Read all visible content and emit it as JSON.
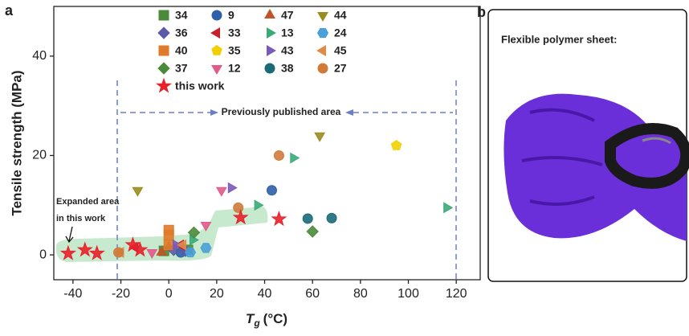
{
  "chart_data": {
    "type": "scatter",
    "ylabel": "Tensile strength (MPa)",
    "xlabel": {
      "symbol": "T",
      "subscript": "g",
      "unit": "(°C)"
    },
    "xlim": [
      -48,
      130
    ],
    "ylim": [
      -5,
      50
    ],
    "xticks": [
      -40,
      -20,
      0,
      20,
      40,
      60,
      80,
      100,
      120
    ],
    "yticks": [
      0,
      20,
      40
    ],
    "annotations": [
      "Previously published area",
      "Expanded area",
      "in this work"
    ],
    "series": [
      {
        "name": "34",
        "marker": "square",
        "color": "#4a8b3a",
        "x": [
          8,
          -2
        ],
        "values": [
          1,
          0.8
        ]
      },
      {
        "name": "9",
        "marker": "circle",
        "color": "#2f5fa8",
        "x": [
          43,
          5
        ],
        "values": [
          13,
          0.5
        ]
      },
      {
        "name": "47",
        "marker": "triangle-up",
        "color": "#c0532a",
        "x": [
          0,
          -3
        ],
        "values": [
          1.5,
          0.5
        ]
      },
      {
        "name": "44",
        "marker": "triangle-down",
        "color": "#9a8c1f",
        "x": [
          -13,
          63
        ],
        "values": [
          13,
          24
        ]
      },
      {
        "name": "36",
        "marker": "diamond",
        "color": "#5a5aa8",
        "x": [
          2,
          7
        ],
        "values": [
          1,
          0.8
        ]
      },
      {
        "name": "33",
        "marker": "triangle-left",
        "color": "#c8202a",
        "x": [
          5,
          -14
        ],
        "values": [
          2,
          1.5
        ]
      },
      {
        "name": "13",
        "marker": "triangle-right",
        "color": "#3aaa78",
        "x": [
          116,
          52,
          37,
          10
        ],
        "values": [
          9.5,
          19.5,
          10,
          3
        ]
      },
      {
        "name": "24",
        "marker": "hexagon",
        "color": "#4aa0d8",
        "x": [
          15.5,
          9
        ],
        "values": [
          1.4,
          0.5
        ]
      },
      {
        "name": "40",
        "marker": "square",
        "color": "#e07a2a",
        "x": [
          0,
          0,
          0
        ],
        "values": [
          5,
          4,
          2
        ]
      },
      {
        "name": "35",
        "marker": "pentagon",
        "color": "#f2d000",
        "x": [
          95
        ],
        "values": [
          22
        ]
      },
      {
        "name": "43",
        "marker": "triangle-right",
        "color": "#7a5ab8",
        "x": [
          26,
          3
        ],
        "values": [
          13.5,
          2
        ]
      },
      {
        "name": "45",
        "marker": "triangle-left",
        "color": "#e08a4a",
        "x": [
          6,
          -20
        ],
        "values": [
          2,
          0.5
        ]
      },
      {
        "name": "37",
        "marker": "diamond",
        "color": "#4a8b3a",
        "x": [
          10.5,
          60
        ],
        "values": [
          4.5,
          4.7
        ]
      },
      {
        "name": "12",
        "marker": "triangle-down",
        "color": "#e05a8a",
        "x": [
          22,
          15.5,
          -7
        ],
        "values": [
          13,
          6,
          0.5
        ]
      },
      {
        "name": "38",
        "marker": "circle",
        "color": "#1a6a7a",
        "x": [
          58,
          68
        ],
        "values": [
          7.3,
          7.4
        ]
      },
      {
        "name": "27",
        "marker": "circle",
        "color": "#d07a3a",
        "x": [
          46,
          29,
          -21
        ],
        "values": [
          20,
          9.5,
          0.5
        ]
      },
      {
        "name": "this work",
        "marker": "star",
        "color": "#e8202a",
        "x": [
          -42,
          -35,
          -30,
          -15,
          -12,
          30,
          46
        ],
        "values": [
          0.3,
          1,
          0.3,
          2,
          1,
          7.5,
          7.2
        ]
      }
    ]
  },
  "panel_labels": [
    "a",
    "b"
  ],
  "photo_caption": "Flexible polymer sheet:"
}
